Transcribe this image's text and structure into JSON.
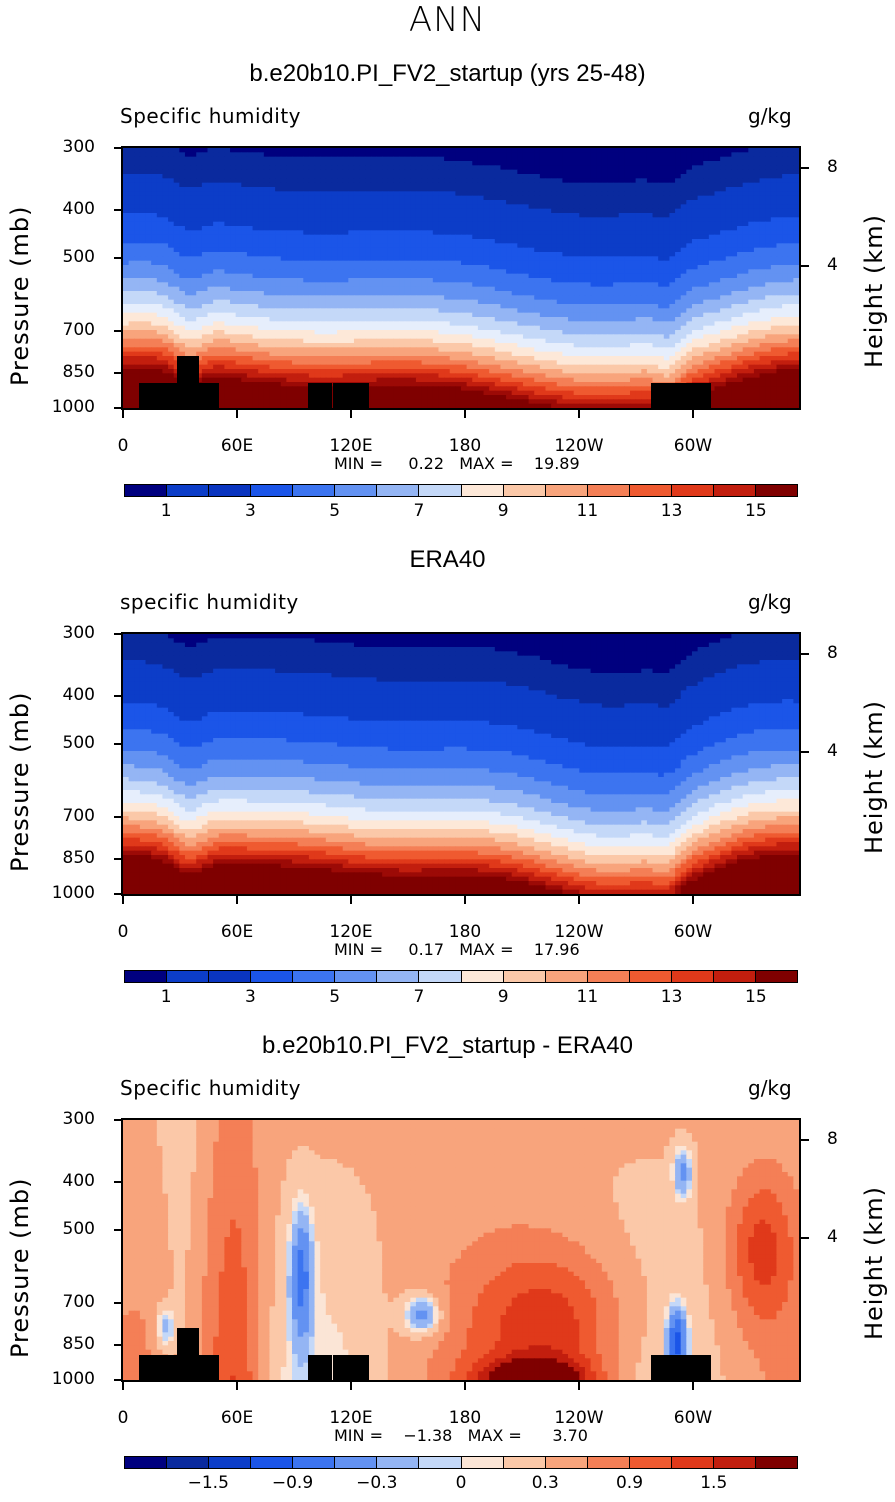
{
  "page_title": "ANN",
  "panels": [
    {
      "title": "b.e20b10.PI_FV2_startup (yrs 25-48)",
      "variable_label": "Specific humidity",
      "units": "g/kg",
      "y_left_label": "Pressure (mb)",
      "y_right_label": "Height (km)",
      "minmax": "MIN =     0.22   MAX =    19.89",
      "colorbar_labels": [
        "1",
        "3",
        "5",
        "7",
        "9",
        "11",
        "13",
        "15"
      ],
      "style": "abs"
    },
    {
      "title": "ERA40",
      "variable_label": "specific humidity",
      "units": "g/kg",
      "y_left_label": "Pressure (mb)",
      "y_right_label": "Height (km)",
      "minmax": "MIN =     0.17   MAX =    17.96",
      "colorbar_labels": [
        "1",
        "3",
        "5",
        "7",
        "9",
        "11",
        "13",
        "15"
      ],
      "style": "abs"
    },
    {
      "title": "b.e20b10.PI_FV2_startup - ERA40",
      "variable_label": "Specific humidity",
      "units": "g/kg",
      "y_left_label": "Pressure (mb)",
      "y_right_label": "Height (km)",
      "minmax": "MIN =    −1.38   MAX =      3.70",
      "colorbar_labels": [
        "−1.5",
        "−0.9",
        "−0.3",
        "0",
        "0.3",
        "0.9",
        "1.5"
      ],
      "style": "diff"
    }
  ],
  "chart_data": [
    {
      "type": "heatmap",
      "title": "b.e20b10.PI_FV2_startup (yrs 25-48)",
      "xlabel": "",
      "ylabel": "Pressure (mb)",
      "x_ticks": [
        "0",
        "60E",
        "120E",
        "180",
        "120W",
        "60W"
      ],
      "y_ticks_pressure": [
        300,
        400,
        500,
        700,
        850,
        1000
      ],
      "y_ticks_height_km": [
        8,
        4
      ],
      "ylim": [
        1000,
        300
      ],
      "y_scale": "log",
      "colorbar_levels": [
        0.5,
        1,
        2,
        3,
        4,
        5,
        6,
        7,
        8,
        9,
        10,
        11,
        12,
        13,
        14,
        15,
        16
      ],
      "colorbar_colors": [
        "#00007f",
        "#0a2a9e",
        "#0c3dc8",
        "#1b55e8",
        "#3c74f0",
        "#6392f2",
        "#94b5f4",
        "#c4d8f8",
        "#e6eefc",
        "#fde8d8",
        "#fbc8a8",
        "#f8a47c",
        "#f47f56",
        "#ef5a30",
        "#e0391a",
        "#c21e0e",
        "#9c0a06",
        "#7f0000"
      ],
      "min": 0.22,
      "max": 19.89,
      "units": "g/kg"
    },
    {
      "type": "heatmap",
      "title": "ERA40",
      "xlabel": "",
      "ylabel": "Pressure (mb)",
      "x_ticks": [
        "0",
        "60E",
        "120E",
        "180",
        "120W",
        "60W"
      ],
      "y_ticks_pressure": [
        300,
        400,
        500,
        700,
        850,
        1000
      ],
      "y_ticks_height_km": [
        8,
        4
      ],
      "ylim": [
        1000,
        300
      ],
      "y_scale": "log",
      "colorbar_levels": [
        0.5,
        1,
        2,
        3,
        4,
        5,
        6,
        7,
        8,
        9,
        10,
        11,
        12,
        13,
        14,
        15,
        16
      ],
      "min": 0.17,
      "max": 17.96,
      "units": "g/kg"
    },
    {
      "type": "heatmap",
      "title": "b.e20b10.PI_FV2_startup - ERA40",
      "xlabel": "",
      "ylabel": "Pressure (mb)",
      "x_ticks": [
        "0",
        "60E",
        "120E",
        "180",
        "120W",
        "60W"
      ],
      "y_ticks_pressure": [
        300,
        400,
        500,
        700,
        850,
        1000
      ],
      "y_ticks_height_km": [
        8,
        4
      ],
      "ylim": [
        1000,
        300
      ],
      "y_scale": "log",
      "colorbar_levels": [
        -1.8,
        -1.5,
        -1.2,
        -0.9,
        -0.6,
        -0.3,
        -0.1,
        0,
        0.1,
        0.3,
        0.6,
        0.9,
        1.2,
        1.5,
        1.8
      ],
      "colorbar_colors": [
        "#00007f",
        "#0a2a9e",
        "#0c3dc8",
        "#1b55e8",
        "#3c74f0",
        "#6392f2",
        "#94b5f4",
        "#c4d8f8",
        "#fbe5d6",
        "#fbc8a8",
        "#f8a47c",
        "#f47f56",
        "#ef5a30",
        "#e0391a",
        "#c21e0e",
        "#7f0000"
      ],
      "min": -1.38,
      "max": 3.7,
      "units": "g/kg"
    }
  ]
}
